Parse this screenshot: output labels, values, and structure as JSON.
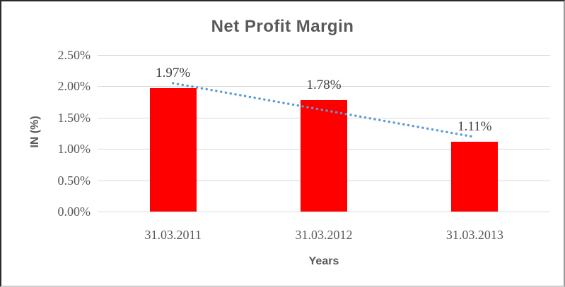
{
  "chart_data": {
    "type": "bar",
    "title": "Net Profit Margin",
    "ylabel": "IN (%)",
    "xlabel": "Years",
    "categories": [
      "31.03.2011",
      "31.03.2012",
      "31.03.2013"
    ],
    "values": [
      1.97,
      1.78,
      1.11
    ],
    "data_labels": [
      "1.97%",
      "1.78%",
      "1.11%"
    ],
    "y_ticks": [
      "0.00%",
      "0.50%",
      "1.00%",
      "1.50%",
      "2.00%",
      "2.50%"
    ],
    "y_tick_values": [
      0,
      0.5,
      1.0,
      1.5,
      2.0,
      2.5
    ],
    "ylim": [
      0,
      2.5
    ],
    "grid": "horizontal only",
    "legend_position": "none",
    "trendline": "linear dotted, declining across all three bars",
    "bar_color": "#ff0000",
    "trendline_color": "#5b9bd5",
    "grid_color": "#d9d9d9",
    "text_color": "#595959",
    "label_color": "#3f3f3f"
  }
}
